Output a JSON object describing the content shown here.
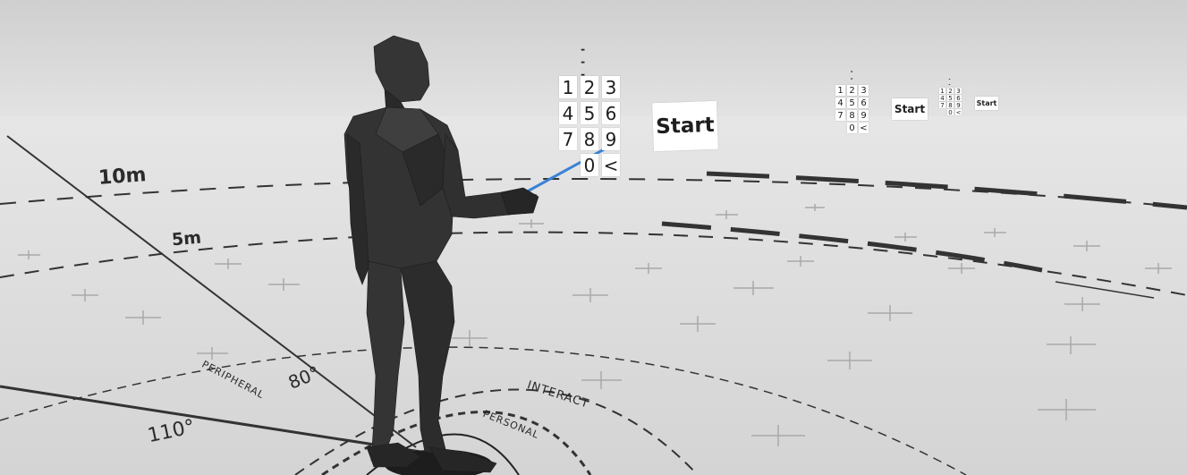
{
  "scene": {
    "distance_markers": [
      "10m",
      "5m"
    ],
    "angle_markers": [
      "80°",
      "110°"
    ],
    "zone_labels": [
      "INTERACT",
      "PERSONAL",
      "PERIPHERAL"
    ],
    "pointer_color": "#3b82d6",
    "avatar_color": "#2e2e2e"
  },
  "keypad_main": {
    "display": "----",
    "keys": [
      "1",
      "2",
      "3",
      "4",
      "5",
      "6",
      "7",
      "8",
      "9",
      "0",
      "<"
    ],
    "start_label": "Start"
  },
  "keypad_far1": {
    "display": "----",
    "keys": [
      "1",
      "2",
      "3",
      "4",
      "5",
      "6",
      "7",
      "8",
      "9",
      "0",
      "<"
    ],
    "start_label": "Start"
  },
  "keypad_far2": {
    "display": "----",
    "keys": [
      "1",
      "2",
      "3",
      "4",
      "5",
      "6",
      "7",
      "8",
      "9",
      "0",
      "<"
    ],
    "start_label": "Start"
  }
}
